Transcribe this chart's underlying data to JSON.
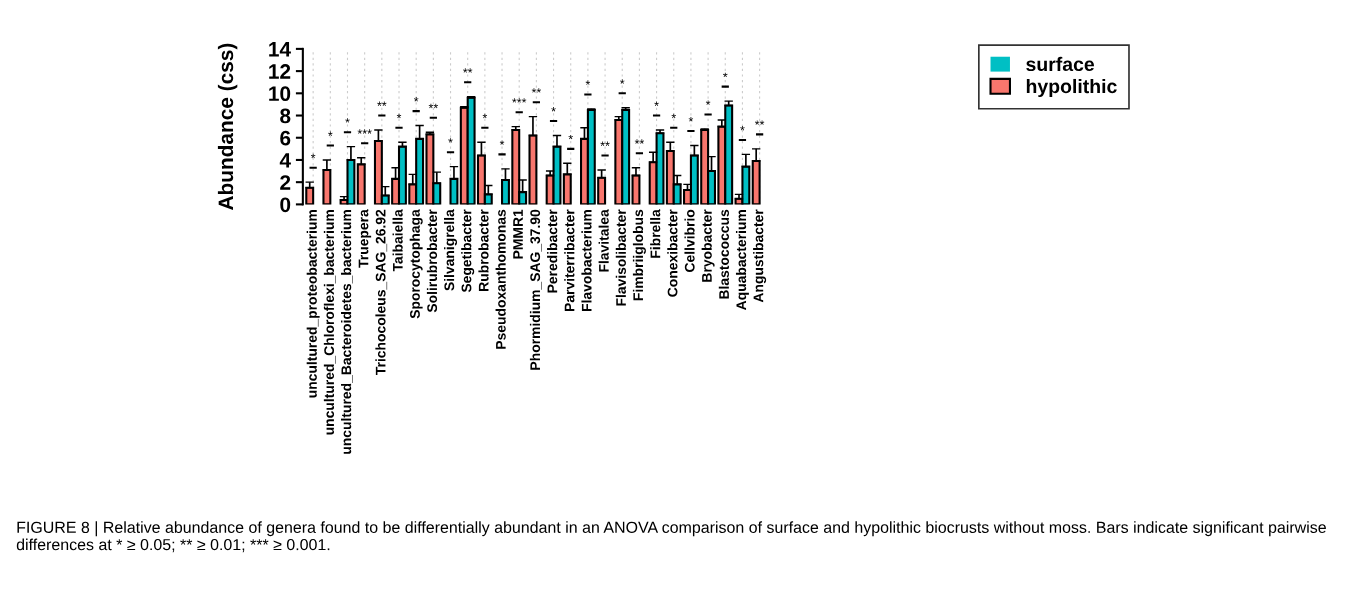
{
  "chart_data": {
    "type": "bar",
    "ylabel": "Abundance (css)",
    "categories": [
      "uncultured_proteobacterium",
      "uncultured_Chloroflexi_bacterium",
      "uncultured_Bacteroidetes_bacterium",
      "Truepera",
      "Trichocoleus_SAG_26.92",
      "Taibaiella",
      "Sporocytophaga",
      "Solirubrobacter",
      "Silvanigrella",
      "Segetibacter",
      "Rubrobacter",
      "Pseudoxanthomonas",
      "PMMR1",
      "Phormidium_SAG_37.90",
      "Peredibacter",
      "Parviterribacter",
      "Flavobacterium",
      "Flavitalea",
      "Flavisolibacter",
      "Fimbriiglobus",
      "Fibrella",
      "Conexibacter",
      "Cellvibrio",
      "Bryobacter",
      "Blastococcus",
      "Aquabacterium",
      "Angustibacter"
    ],
    "series": [
      {
        "name": "hypolithic",
        "color": "#f8766d",
        "values": [
          1.5,
          3.1,
          0.4,
          3.6,
          5.7,
          2.3,
          1.8,
          6.3,
          0,
          8.7,
          4.4,
          0,
          6.7,
          6.2,
          2.6,
          2.7,
          5.9,
          2.4,
          7.6,
          2.6,
          3.8,
          4.8,
          1.3,
          6.7,
          7.0,
          0.5,
          3.9
        ],
        "errors": [
          [
            1.5,
            2.0
          ],
          [
            3.1,
            4.0
          ],
          [
            0.4,
            0.7
          ],
          [
            3.6,
            4.2
          ],
          [
            5.7,
            6.7
          ],
          [
            2.3,
            3.3
          ],
          [
            1.8,
            2.7
          ],
          [
            6.3,
            6.5
          ],
          null,
          [
            8.7,
            8.8
          ],
          [
            4.4,
            5.6
          ],
          null,
          [
            6.7,
            7.0
          ],
          [
            6.2,
            7.9
          ],
          [
            2.6,
            3.0
          ],
          [
            2.7,
            3.7
          ],
          [
            5.9,
            6.9
          ],
          [
            2.4,
            3.1
          ],
          [
            7.6,
            7.9
          ],
          [
            2.6,
            3.3
          ],
          [
            3.8,
            4.7
          ],
          [
            4.8,
            5.6
          ],
          [
            1.3,
            1.8
          ],
          [
            6.7,
            6.8
          ],
          [
            7.0,
            7.6
          ],
          [
            0.5,
            0.9
          ],
          [
            3.9,
            5.0
          ]
        ]
      },
      {
        "name": "surface",
        "color": "#00bfc4",
        "values": [
          0,
          0,
          4.0,
          0,
          0.8,
          5.2,
          5.9,
          1.9,
          2.3,
          9.6,
          0.9,
          2.2,
          1.1,
          0,
          5.2,
          0,
          8.5,
          0,
          8.5,
          0,
          6.4,
          1.8,
          4.4,
          3.0,
          8.9,
          3.4,
          0
        ],
        "errors": [
          null,
          null,
          [
            4.0,
            5.2
          ],
          null,
          [
            0.8,
            1.6
          ],
          [
            5.2,
            5.6
          ],
          [
            5.9,
            7.1
          ],
          [
            1.9,
            2.9
          ],
          [
            2.3,
            3.4
          ],
          [
            9.6,
            9.7
          ],
          [
            0.9,
            1.7
          ],
          [
            2.2,
            3.2
          ],
          [
            1.1,
            2.2
          ],
          null,
          [
            5.2,
            6.2
          ],
          null,
          [
            8.5,
            8.6
          ],
          null,
          [
            8.5,
            8.7
          ],
          null,
          [
            6.4,
            6.7
          ],
          [
            1.8,
            2.6
          ],
          [
            4.4,
            5.3
          ],
          [
            3.0,
            4.3
          ],
          [
            8.9,
            9.3
          ],
          [
            3.4,
            4.5
          ],
          null
        ]
      }
    ],
    "ylim": [
      0,
      14
    ],
    "yticks": [
      0,
      2,
      4,
      6,
      8,
      10,
      12,
      14
    ],
    "grid": "x",
    "legend": "right",
    "annotations": [
      "*",
      "*",
      "*",
      "***",
      "**",
      "*",
      "*",
      "**",
      "*",
      "**",
      "*",
      "*",
      "***",
      "**",
      "*",
      "*",
      "*",
      "**",
      "*",
      "**",
      "*",
      "*",
      "*",
      "*",
      "*",
      "*",
      "**",
      "FIGURE 8 | Relative abundance of genera found to be differentially abundant in an ANOVA comparison of surface and hypolithic biocrusts without moss. Bars indicate significant pairwise differences at * ≥ 0.05; ** ≥ 0.01; *** ≥ 0.001."
    ]
  }
}
